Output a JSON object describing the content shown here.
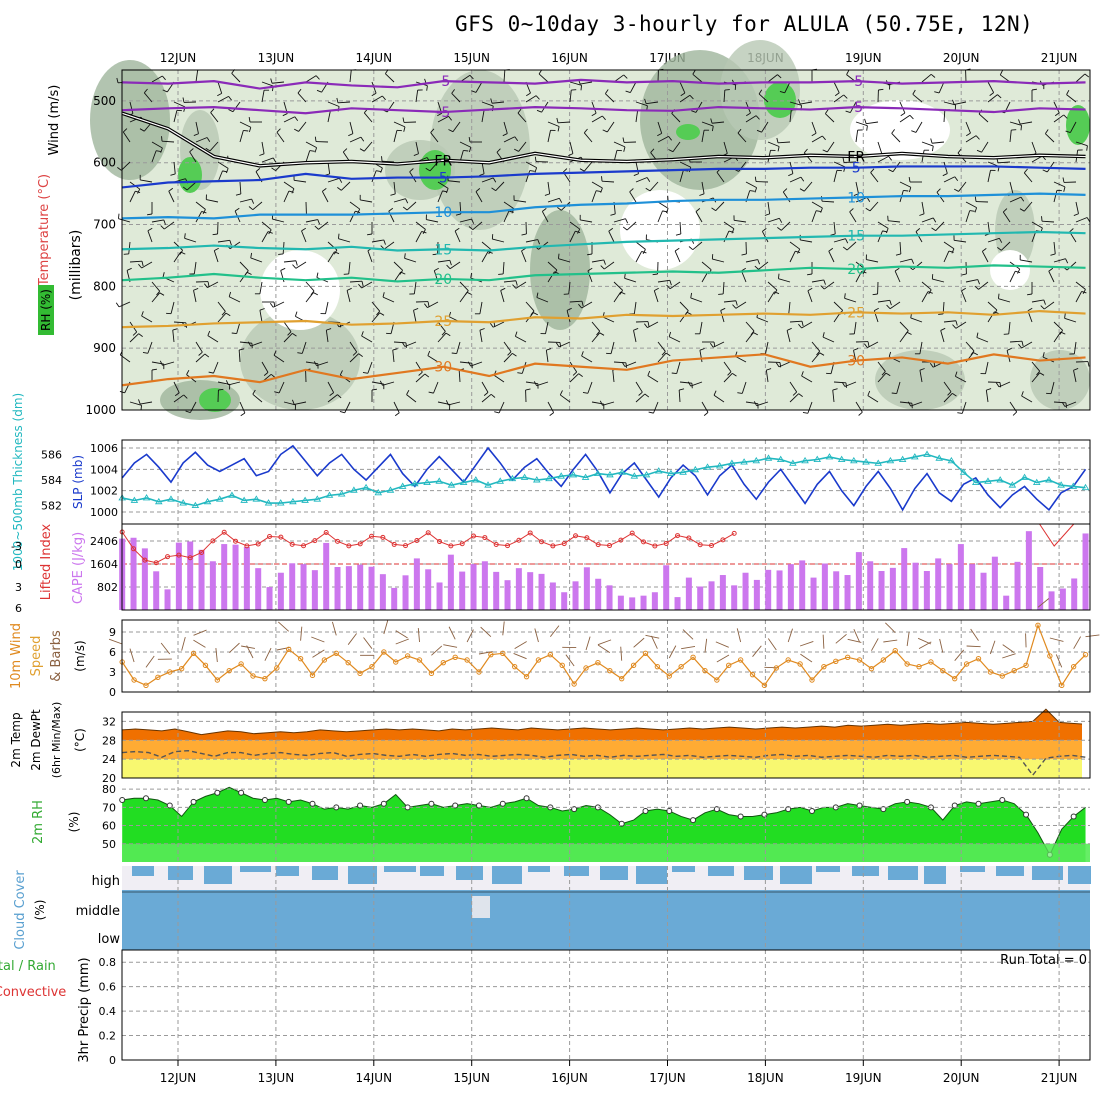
{
  "title": "GFS 0~10day 3-hourly for ALULA (50.75E, 12N)",
  "colors": {
    "grid": "#9a9a9a",
    "cape": "#cc77ee",
    "li": "#dd3333",
    "slp": "#1a3acc",
    "thick": "#22b8c0",
    "wind_line": "#e08a20",
    "wind_barb": "#8a6040",
    "temp_hot": "#f07000",
    "temp_warm": "#ffab33",
    "temp_mild": "#ffe860",
    "temp_cool": "#ffff99",
    "rh_dark": "#199919",
    "rh_mid": "#22dd22",
    "rh_light": "#66ee66",
    "cloud": "#6aaad6",
    "cloud_bg": "#f0eef4",
    "freeze": "#000000"
  },
  "chart_data": [
    {
      "panel": "upper-air cross section",
      "type": "heatmap",
      "ylabel": "(millibars)",
      "legend_labels": [
        "Wind (m/s)",
        "Temperature (°C)",
        "RH (%)"
      ],
      "y_ticks": [
        "500",
        "600",
        "700",
        "800",
        "900",
        "1000"
      ],
      "ylim": [
        1000,
        450
      ],
      "isotherms": [
        {
          "label": "-5",
          "color": "#8a2ab8",
          "values": [
            470,
            472,
            468,
            480,
            470,
            475,
            478,
            468,
            470,
            472,
            466,
            470,
            468,
            472,
            470,
            470,
            468,
            472,
            470,
            468,
            472,
            470
          ]
        },
        {
          "label": "-5",
          "color": "#8a2ab8",
          "values": [
            515,
            512,
            510,
            515,
            520,
            512,
            515,
            518,
            514,
            510,
            512,
            515,
            516,
            510,
            512,
            514,
            510,
            512,
            515,
            518,
            512,
            514
          ]
        },
        {
          "label": "FR",
          "color": "#000000",
          "values": [
            520,
            545,
            590,
            605,
            600,
            598,
            602,
            596,
            600,
            585,
            596,
            598,
            595,
            590,
            592,
            588,
            590,
            585,
            590,
            592,
            588,
            590
          ]
        },
        {
          "label": "5",
          "color": "#1a3acc",
          "values": [
            640,
            632,
            630,
            628,
            618,
            626,
            624,
            624,
            622,
            618,
            616,
            614,
            612,
            610,
            610,
            608,
            608,
            606,
            606,
            606,
            608,
            610
          ]
        },
        {
          "label": "10",
          "color": "#1e90d8",
          "values": [
            690,
            688,
            690,
            684,
            684,
            684,
            682,
            680,
            680,
            672,
            668,
            666,
            662,
            660,
            660,
            658,
            656,
            654,
            654,
            652,
            650,
            652
          ]
        },
        {
          "label": "15",
          "color": "#22b8b0",
          "values": [
            740,
            738,
            734,
            738,
            740,
            736,
            742,
            740,
            742,
            736,
            732,
            728,
            726,
            724,
            722,
            720,
            718,
            718,
            716,
            714,
            712,
            714
          ]
        },
        {
          "label": "20",
          "color": "#22c08a",
          "values": [
            790,
            786,
            780,
            786,
            790,
            786,
            792,
            788,
            790,
            782,
            780,
            778,
            776,
            778,
            774,
            770,
            772,
            768,
            770,
            766,
            768,
            770
          ]
        },
        {
          "label": "25",
          "color": "#e0a030",
          "values": [
            866,
            864,
            860,
            858,
            856,
            862,
            860,
            856,
            858,
            850,
            852,
            846,
            848,
            846,
            844,
            846,
            842,
            844,
            842,
            846,
            840,
            844
          ]
        },
        {
          "label": "30",
          "color": "#e07820",
          "values": [
            960,
            950,
            945,
            955,
            935,
            950,
            940,
            930,
            945,
            925,
            930,
            935,
            920,
            915,
            910,
            930,
            920,
            915,
            925,
            910,
            920,
            915
          ]
        }
      ]
    },
    {
      "panel": "thickness and SLP",
      "type": "line",
      "ylabel_left": "1000~500mb Thickness (dm)",
      "ylabel_right": "SLP (mb)",
      "left_ticks": [
        "582",
        "584",
        "586"
      ],
      "right_ticks": [
        "1000",
        "1002",
        "1004",
        "1006"
      ],
      "x_days": [
        0,
        0.125,
        0.25,
        0.375,
        0.5,
        0.625,
        0.75,
        0.875,
        1,
        1.125,
        1.25,
        1.375,
        1.5,
        1.625,
        1.75,
        1.875,
        2,
        2.125,
        2.25,
        2.375,
        2.5,
        2.625,
        2.75,
        2.875,
        3,
        3.125,
        3.25,
        3.375,
        3.5,
        3.625,
        3.75,
        3.875,
        4,
        4.125,
        4.25,
        4.375,
        4.5,
        4.625,
        4.75,
        4.875,
        5,
        5.125,
        5.25,
        5.375,
        5.5,
        5.625,
        5.75,
        5.875,
        6,
        6.125,
        6.25,
        6.375,
        6.5,
        6.625,
        6.75,
        6.875,
        7,
        7.125,
        7.25,
        7.375,
        7.5,
        7.625,
        7.75,
        7.875,
        8,
        8.125,
        8.25,
        8.375,
        8.5,
        8.625,
        8.75,
        8.875,
        9,
        9.125,
        9.25,
        9.375,
        9.5,
        9.625,
        9.75,
        9.875
      ],
      "series": [
        {
          "name": "SLP",
          "axis": "right",
          "color": "#1a3acc",
          "values": [
            1003.2,
            1004.6,
            1005.4,
            1004.2,
            1002.8,
            1004.6,
            1005.6,
            1004.4,
            1003.8,
            1004.4,
            1005.0,
            1003.4,
            1003.8,
            1005.4,
            1006.2,
            1004.8,
            1003.4,
            1004.6,
            1005.4,
            1004.0,
            1003.0,
            1004.2,
            1005.4,
            1003.6,
            1002.4,
            1004.0,
            1005.2,
            1004.0,
            1002.8,
            1004.4,
            1006.0,
            1004.6,
            1003.0,
            1004.2,
            1005.0,
            1003.6,
            1002.4,
            1004.0,
            1005.4,
            1003.8,
            1001.8,
            1003.6,
            1004.6,
            1003.0,
            1001.4,
            1003.2,
            1004.4,
            1003.4,
            1001.6,
            1003.4,
            1004.4,
            1002.6,
            1001.2,
            1002.8,
            1004.0,
            1002.4,
            1000.8,
            1002.6,
            1003.8,
            1002.0,
            1000.6,
            1002.4,
            1003.8,
            1002.2,
            1000.2,
            1002.2,
            1003.6,
            1001.8,
            1001.0,
            1002.6,
            1003.2,
            1001.6,
            1000.4,
            1001.6,
            1002.4,
            1001.2,
            1000.2,
            1001.8,
            1002.4,
            1004.0
          ]
        },
        {
          "name": "Thickness",
          "axis": "left",
          "color": "#22b8c0",
          "values": [
            582.6,
            582.4,
            582.6,
            582.3,
            582.5,
            582.2,
            582.0,
            582.3,
            582.5,
            582.8,
            582.4,
            582.5,
            582.2,
            582.2,
            582.3,
            582.4,
            582.5,
            582.8,
            582.9,
            583.2,
            583.4,
            583.0,
            583.2,
            583.5,
            583.7,
            583.8,
            583.9,
            583.6,
            583.8,
            584.0,
            583.6,
            583.9,
            584.1,
            584.2,
            584.0,
            584.1,
            584.3,
            584.4,
            584.2,
            584.5,
            584.4,
            584.6,
            584.3,
            584.4,
            584.7,
            584.5,
            584.6,
            584.8,
            585.0,
            585.1,
            585.3,
            585.4,
            585.5,
            585.7,
            585.6,
            585.3,
            585.5,
            585.6,
            585.8,
            585.6,
            585.5,
            585.4,
            585.3,
            585.5,
            585.6,
            585.8,
            586.0,
            585.7,
            585.5,
            584.6,
            583.8,
            583.9,
            584.0,
            583.6,
            584.2,
            583.8,
            584.0,
            583.6,
            583.5,
            583.4
          ]
        }
      ]
    },
    {
      "panel": "CAPE and Lifted Index",
      "type": "bar",
      "ylabel_left": "Lifted Index",
      "ylabel_right": "CAPE (J/kg)",
      "li_ticks": [
        "-3",
        "0",
        "3",
        "6"
      ],
      "cape_ticks": [
        "802",
        "1604",
        "2406"
      ],
      "cape_values": [
        2490,
        2520,
        2150,
        1350,
        720,
        2350,
        2390,
        2100,
        1700,
        2300,
        2280,
        2200,
        1460,
        800,
        1300,
        1630,
        1600,
        1390,
        2340,
        1500,
        1530,
        1580,
        1510,
        1250,
        770,
        1210,
        1800,
        1420,
        960,
        1930,
        1340,
        1600,
        1700,
        1330,
        1040,
        1460,
        1320,
        1260,
        960,
        620,
        1000,
        1490,
        1090,
        860,
        500,
        440,
        500,
        620,
        1560,
        450,
        1130,
        820,
        1000,
        1220,
        860,
        1300,
        1050,
        1400,
        1380,
        1600,
        1730,
        1130,
        1620,
        1350,
        1220,
        2020,
        1700,
        1360,
        1470,
        2160,
        1650,
        1360,
        1800,
        1600,
        2300,
        1600,
        1300,
        1860,
        500,
        1680,
        2750,
        1500,
        650,
        750,
        1100,
        2670
      ]
    },
    {
      "panel": "10m wind",
      "type": "line",
      "ylabel": "10m Wind Speed & Barbs",
      "unit": "(m/s)",
      "ticks": [
        "0",
        "3",
        "6",
        "9"
      ],
      "series": [
        {
          "name": "10m wind speed",
          "color": "#e08a20",
          "values": [
            4.5,
            1.8,
            1.0,
            2.2,
            3.0,
            3.5,
            5.8,
            4.0,
            1.8,
            3.2,
            4.2,
            2.4,
            2.0,
            3.6,
            6.4,
            5.0,
            2.5,
            4.8,
            5.8,
            4.4,
            2.8,
            3.8,
            6.0,
            4.5,
            5.4,
            4.8,
            2.8,
            4.4,
            5.2,
            4.8,
            3.0,
            5.6,
            5.8,
            3.8,
            2.3,
            4.8,
            5.6,
            4.0,
            1.2,
            3.6,
            4.4,
            3.2,
            2.0,
            4.0,
            5.8,
            3.8,
            2.4,
            3.8,
            5.2,
            3.2,
            1.8,
            4.0,
            4.8,
            2.6,
            1.0,
            3.6,
            4.8,
            4.2,
            1.8,
            3.8,
            4.6,
            5.2,
            4.8,
            3.5,
            4.8,
            6.2,
            4.2,
            3.8,
            4.5,
            3.2,
            2.0,
            4.2,
            5.0,
            3.0,
            2.4,
            3.2,
            4.0,
            10.0,
            5.4,
            1.0,
            3.8,
            5.6
          ]
        }
      ]
    },
    {
      "panel": "2m temperature",
      "type": "area",
      "ylabel": "2m Temp 2m DewPt (6hr Min/Max) (°C)",
      "ticks": [
        "20",
        "24",
        "28",
        "32"
      ],
      "series": [
        {
          "name": "2m Temp",
          "values": [
            30.2,
            30.4,
            30.2,
            30.0,
            30.4,
            29.8,
            29.2,
            29.6,
            30.0,
            29.8,
            29.4,
            29.6,
            29.8,
            29.6,
            29.8,
            30.2,
            30.0,
            29.8,
            30.0,
            30.2,
            30.4,
            30.2,
            30.4,
            30.2,
            30.0,
            30.4,
            30.2,
            30.4,
            30.6,
            30.4,
            30.2,
            30.6,
            30.4,
            30.2,
            30.4,
            30.6,
            30.4,
            30.2,
            30.4,
            30.6,
            30.4,
            30.2,
            30.4,
            30.6,
            30.4,
            30.6,
            30.8,
            30.6,
            30.4,
            30.6,
            30.8,
            30.6,
            30.8,
            31.0,
            30.8,
            31.2,
            31.0,
            31.2,
            31.4,
            31.2,
            31.4,
            31.6,
            31.4,
            31.6,
            31.8,
            31.6,
            31.4,
            31.6,
            31.8,
            32.0,
            34.6,
            31.8,
            31.6,
            31.4
          ]
        },
        {
          "name": "2m DewPt",
          "values": [
            25.4,
            25.6,
            25.4,
            24.4,
            25.6,
            25.8,
            25.2,
            24.6,
            25.4,
            25.4,
            24.8,
            25.2,
            25.4,
            25.0,
            24.8,
            25.2,
            25.4,
            24.6,
            25.0,
            25.2,
            24.8,
            24.6,
            25.0,
            24.6,
            25.0,
            25.2,
            24.8,
            25.0,
            24.6,
            24.8,
            25.0,
            24.8,
            24.4,
            24.8,
            25.0,
            24.6,
            24.8,
            24.4,
            24.8,
            24.6,
            24.8,
            25.0,
            24.6,
            24.8,
            24.4,
            24.6,
            24.8,
            24.6,
            24.4,
            24.8,
            25.0,
            24.6,
            24.8,
            24.4,
            24.6,
            24.8,
            24.6,
            24.4,
            24.8,
            24.6,
            24.8,
            24.4,
            24.6,
            24.8,
            24.4,
            24.6,
            24.8,
            24.6,
            24.4,
            20.6,
            24.2,
            24.6,
            24.8,
            24.4
          ]
        }
      ]
    },
    {
      "panel": "2m RH",
      "type": "area",
      "ylabel": "2m RH",
      "unit": "(%)",
      "ticks": [
        "50",
        "60",
        "70",
        "80"
      ],
      "values": [
        74,
        75,
        75,
        74,
        71,
        65,
        73,
        76,
        78,
        81,
        78,
        75,
        74,
        75,
        73,
        74,
        72,
        69,
        70,
        69,
        71,
        70,
        72,
        77,
        70,
        71,
        72,
        70,
        71,
        72,
        71,
        70,
        72,
        73,
        75,
        71,
        70,
        68,
        69,
        71,
        70,
        66,
        61,
        63,
        68,
        69,
        68,
        65,
        63,
        67,
        69,
        66,
        65,
        65,
        66,
        67,
        69,
        70,
        68,
        70,
        70,
        72,
        71,
        70,
        69,
        72,
        73,
        72,
        70,
        63,
        71,
        73,
        72,
        73,
        74,
        72,
        66,
        56,
        44,
        58,
        65,
        70
      ]
    },
    {
      "panel": "Cloud Cover",
      "type": "area",
      "ylabel": "Cloud Cover (%)",
      "layers": [
        "high",
        "middle",
        "low"
      ],
      "values": [
        75,
        60,
        62,
        70,
        55,
        0,
        100
      ]
    },
    {
      "panel": "3hr Precip",
      "type": "bar",
      "ylabel": "3hr Precip (mm)",
      "legend_labels": [
        "Total / Rain",
        "Convective"
      ],
      "ticks": [
        "0",
        "0.2",
        "0.4",
        "0.6",
        "0.8"
      ],
      "run_total": "Run Total = 0",
      "values": []
    }
  ],
  "x_axis": {
    "day_labels": [
      "12JUN",
      "13JUN",
      "14JUN",
      "15JUN",
      "16JUN",
      "17JUN",
      "18JUN",
      "19JUN",
      "20JUN",
      "21JUN"
    ]
  }
}
